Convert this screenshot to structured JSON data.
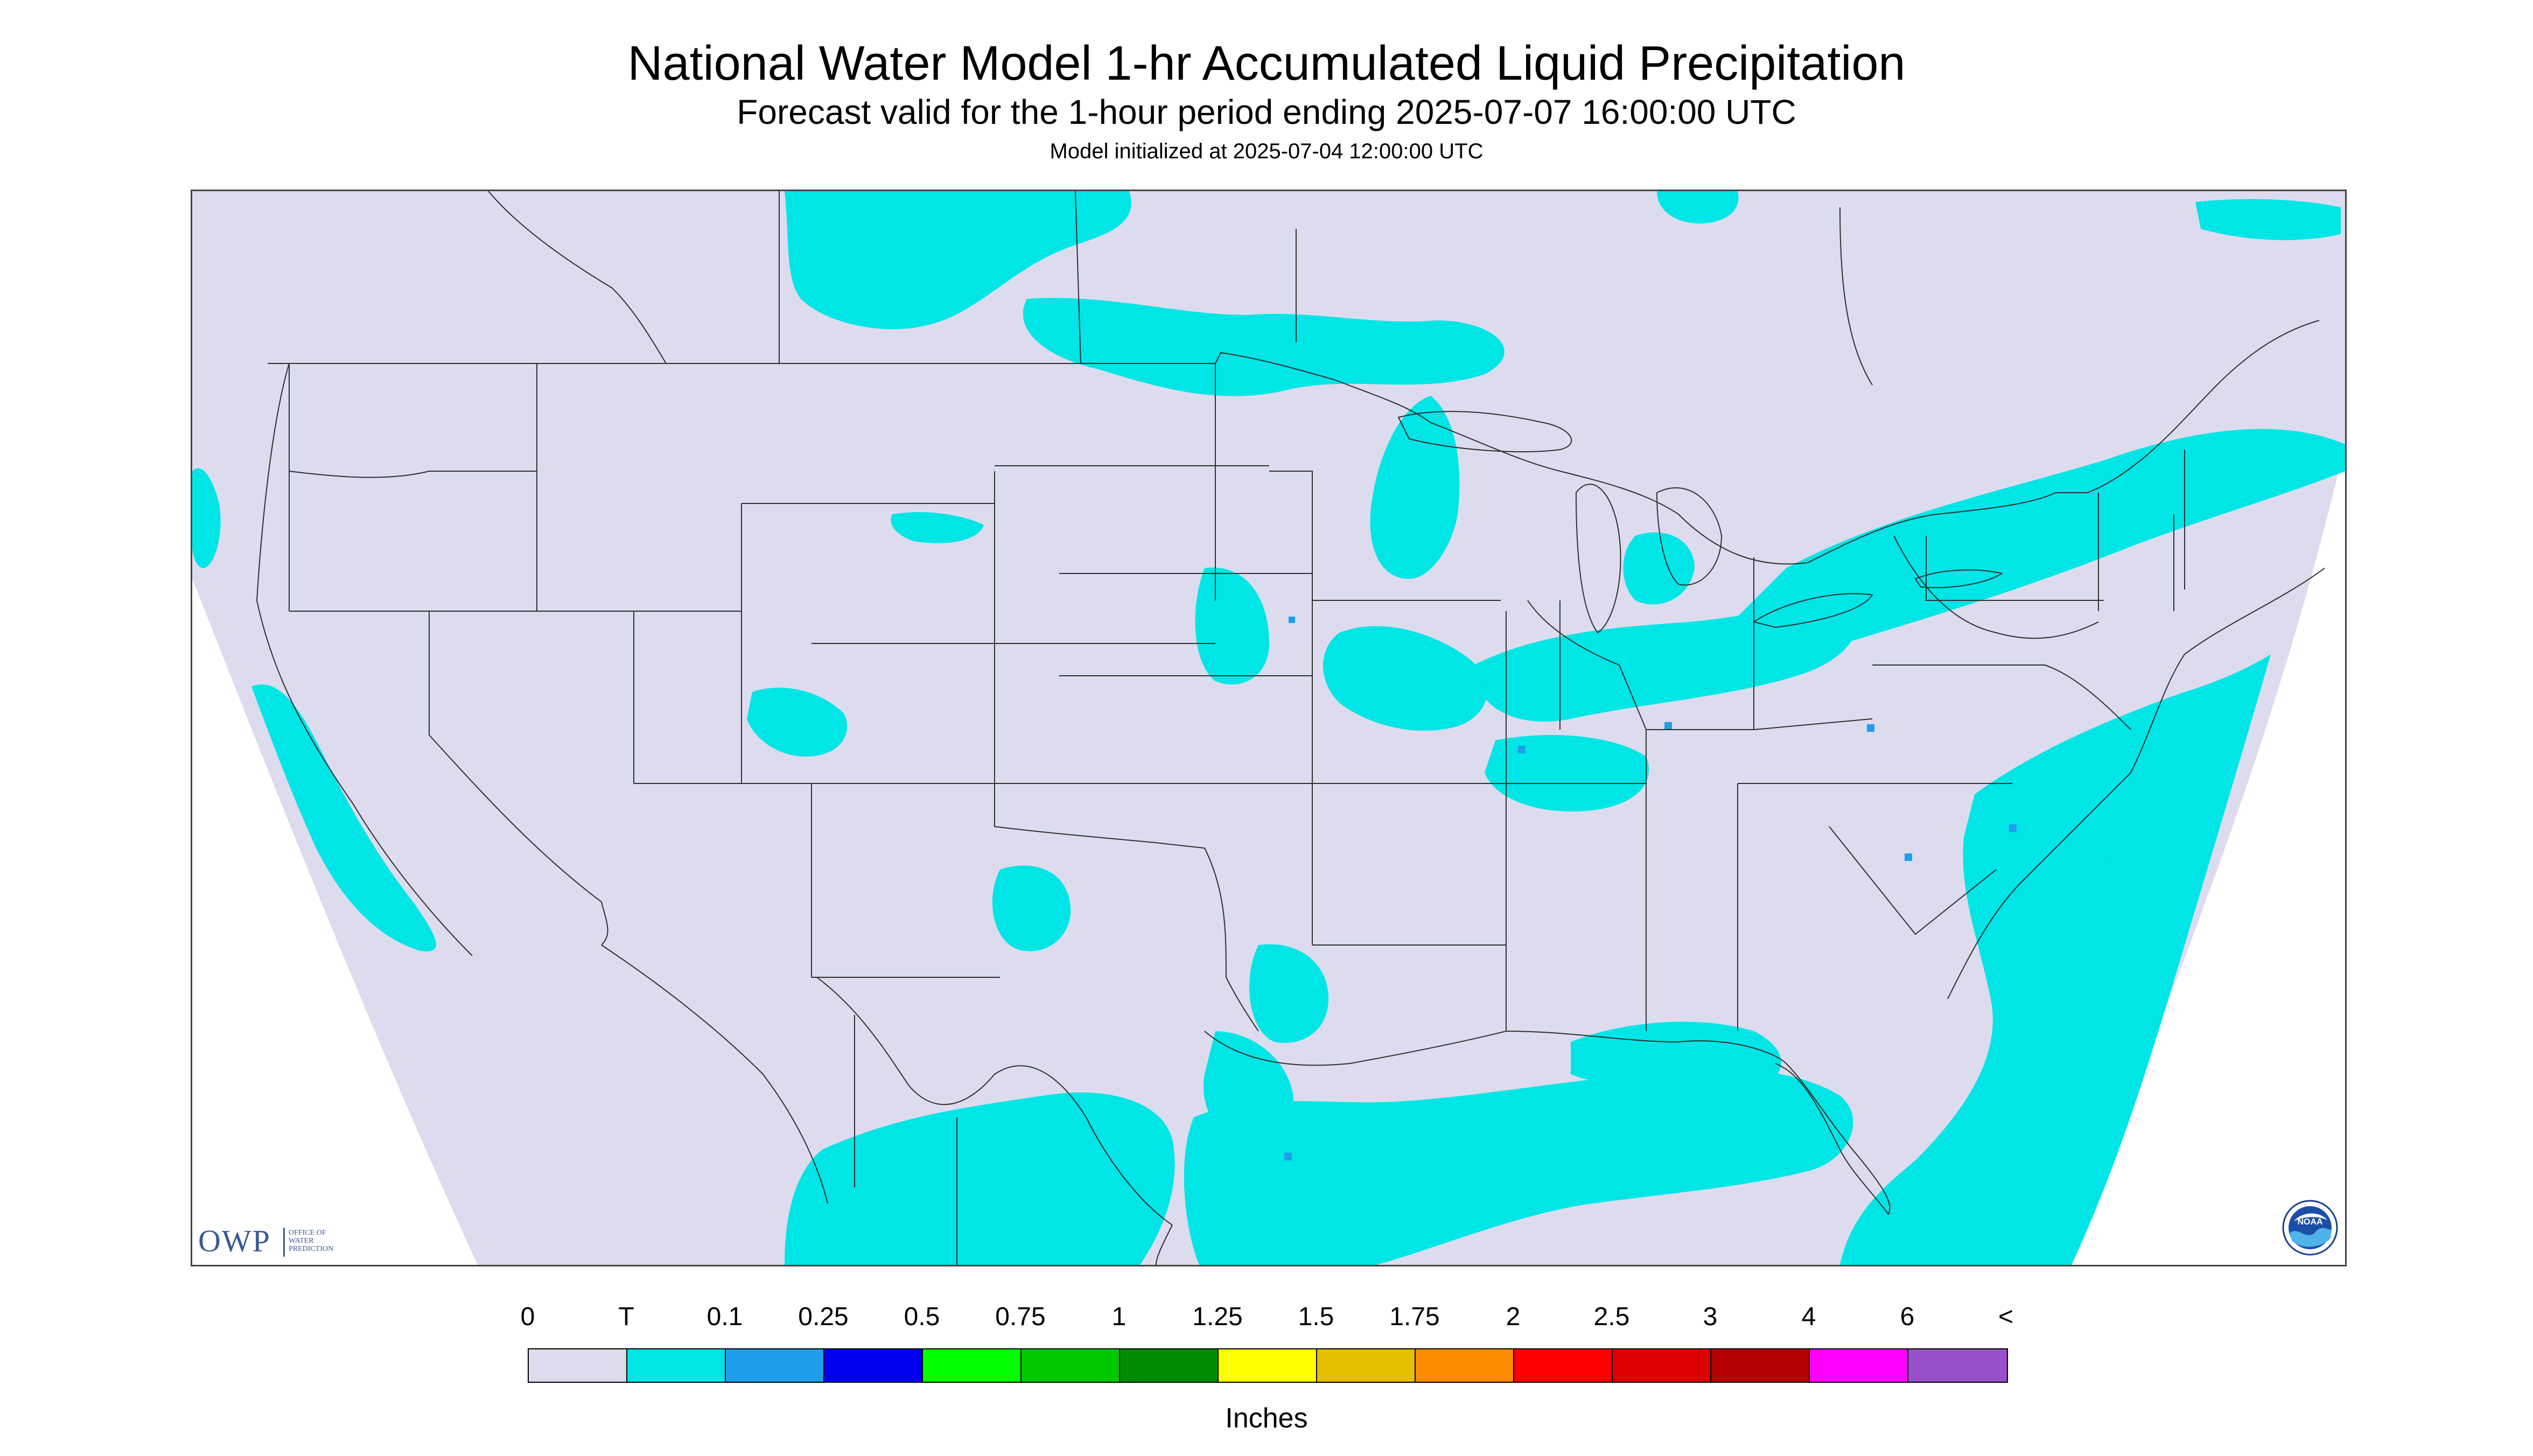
{
  "header": {
    "title": "National Water Model 1-hr Accumulated Liquid Precipitation",
    "subtitle": "Forecast valid for the 1-hour period ending 2025-07-07 16:00:00 UTC",
    "init": "Model initialized at 2025-07-04 12:00:00 UTC"
  },
  "map": {
    "background_color": "#dcdcee",
    "trace_color": "#00e5e5",
    "light_color": "#1e9eea",
    "border_color": "#303030"
  },
  "logos": {
    "owp_letters": "OWP",
    "owp_line1": "OFFICE OF",
    "owp_line2": "WATER",
    "owp_line3": "PREDICTION",
    "noaa_text": "NOAA"
  },
  "legend": {
    "labels": [
      "0",
      "T",
      "0.1",
      "0.25",
      "0.5",
      "0.75",
      "1",
      "1.25",
      "1.5",
      "1.75",
      "2",
      "2.5",
      "3",
      "4",
      "6",
      "<"
    ],
    "colors": [
      "#dcdcee",
      "#00e5e5",
      "#1e9eea",
      "#0000f0",
      "#00ff00",
      "#00c800",
      "#008c00",
      "#ffff00",
      "#e6be00",
      "#ff8c00",
      "#ff0000",
      "#dc0000",
      "#b40000",
      "#ff00ff",
      "#9650c8"
    ],
    "units": "Inches"
  }
}
